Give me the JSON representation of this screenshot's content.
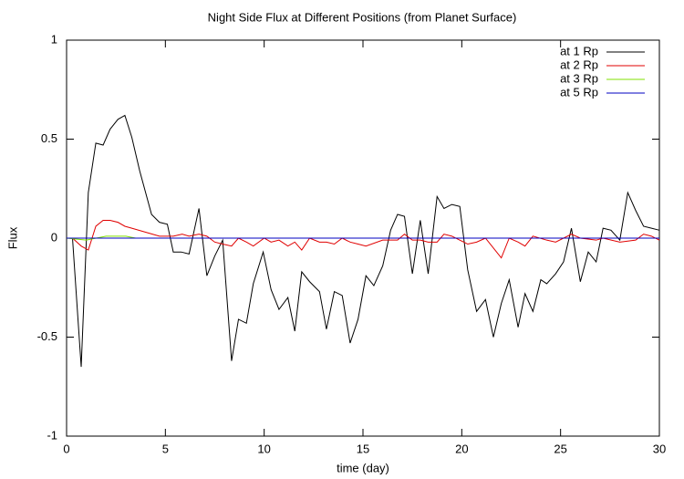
{
  "chart_data": {
    "type": "line",
    "title": "Night Side Flux at Different Positions (from Planet Surface)",
    "xlabel": "time (day)",
    "ylabel": "Flux",
    "xlim": [
      0,
      30
    ],
    "xticks": [
      0,
      5,
      10,
      15,
      20,
      25,
      30
    ],
    "ylim": [
      -1,
      1
    ],
    "yticks": [
      -1,
      -0.5,
      0,
      0.5,
      1
    ],
    "grid": false,
    "legend": "top-right",
    "series": [
      {
        "name": "at 1 Rp",
        "color": "#000000",
        "x": [
          0,
          0.3,
          0.74,
          1.1,
          1.48,
          1.85,
          2.2,
          2.6,
          2.95,
          3.3,
          3.7,
          4.3,
          4.7,
          5.1,
          5.4,
          5.8,
          6.2,
          6.7,
          7.1,
          7.5,
          7.9,
          8.35,
          8.7,
          9.1,
          9.45,
          9.95,
          10.35,
          10.75,
          11.2,
          11.55,
          11.9,
          12.3,
          12.8,
          13.15,
          13.55,
          13.95,
          14.35,
          14.75,
          15.15,
          15.55,
          16.0,
          16.4,
          16.75,
          17.1,
          17.5,
          17.9,
          18.3,
          18.75,
          19.1,
          19.5,
          19.9,
          20.3,
          20.75,
          21.2,
          21.6,
          22.0,
          22.4,
          22.85,
          23.2,
          23.6,
          24.0,
          24.3,
          24.75,
          25.15,
          25.55,
          26.0,
          26.4,
          26.8,
          27.15,
          27.55,
          28.0,
          28.4,
          28.8,
          29.2,
          29.6,
          30
        ],
        "values": [
          0,
          0,
          -0.65,
          0.23,
          0.48,
          0.47,
          0.55,
          0.6,
          0.62,
          0.51,
          0.34,
          0.12,
          0.08,
          0.07,
          -0.07,
          -0.07,
          -0.08,
          0.15,
          -0.19,
          -0.09,
          -0.01,
          -0.62,
          -0.41,
          -0.43,
          -0.23,
          -0.07,
          -0.26,
          -0.36,
          -0.3,
          -0.47,
          -0.17,
          -0.22,
          -0.27,
          -0.46,
          -0.27,
          -0.29,
          -0.53,
          -0.41,
          -0.19,
          -0.24,
          -0.14,
          0.04,
          0.12,
          0.11,
          -0.18,
          0.09,
          -0.18,
          0.21,
          0.15,
          0.17,
          0.16,
          -0.16,
          -0.37,
          -0.31,
          -0.5,
          -0.33,
          -0.21,
          -0.45,
          -0.28,
          -0.37,
          -0.21,
          -0.23,
          -0.18,
          -0.12,
          0.05,
          -0.22,
          -0.07,
          -0.12,
          0.05,
          0.04,
          -0.01,
          0.23,
          0.14,
          0.06,
          0.05,
          0.04
        ]
      },
      {
        "name": "at 2 Rp",
        "color": "#e00000",
        "x": [
          0,
          0.3,
          0.74,
          1.1,
          1.48,
          1.85,
          2.2,
          2.6,
          2.95,
          3.3,
          4.0,
          4.7,
          5.4,
          5.85,
          6.2,
          6.7,
          7.1,
          7.5,
          7.9,
          8.35,
          8.7,
          9.1,
          9.45,
          10.0,
          10.35,
          10.75,
          11.2,
          11.55,
          11.9,
          12.3,
          12.8,
          13.15,
          13.55,
          13.95,
          14.35,
          14.75,
          15.15,
          16.0,
          16.75,
          17.1,
          17.5,
          17.9,
          18.3,
          18.75,
          19.1,
          19.5,
          19.9,
          20.3,
          20.75,
          21.2,
          21.6,
          22.0,
          22.4,
          22.85,
          23.2,
          23.6,
          24.3,
          24.75,
          25.55,
          26.0,
          26.8,
          27.15,
          28.0,
          28.8,
          29.2,
          29.6,
          30
        ],
        "values": [
          0,
          0,
          -0.04,
          -0.06,
          0.06,
          0.09,
          0.09,
          0.08,
          0.06,
          0.05,
          0.03,
          0.01,
          0.01,
          0.02,
          0.01,
          0.02,
          0.01,
          -0.02,
          -0.03,
          -0.04,
          0,
          -0.02,
          -0.04,
          0,
          -0.02,
          -0.01,
          -0.04,
          -0.02,
          -0.06,
          0,
          -0.02,
          -0.02,
          -0.03,
          0,
          -0.02,
          -0.03,
          -0.04,
          -0.01,
          -0.01,
          0.02,
          -0.01,
          -0.01,
          -0.02,
          -0.02,
          0.02,
          0.01,
          -0.01,
          -0.03,
          -0.02,
          0,
          -0.05,
          -0.1,
          0,
          -0.02,
          -0.04,
          0.01,
          -0.01,
          -0.02,
          0.02,
          0,
          -0.01,
          0,
          -0.02,
          -0.01,
          0.02,
          0.01,
          -0.01
        ]
      },
      {
        "name": "at 3 Rp",
        "color": "#80e000",
        "x": [
          0,
          1,
          1.5,
          2,
          2.5,
          3,
          3.5,
          4,
          30
        ],
        "values": [
          0,
          -0.01,
          0,
          0.01,
          0.01,
          0.01,
          0,
          0,
          0
        ]
      },
      {
        "name": "at 5 Rp",
        "color": "#0000c0",
        "x": [
          0,
          30
        ],
        "values": [
          0,
          0
        ]
      }
    ]
  }
}
